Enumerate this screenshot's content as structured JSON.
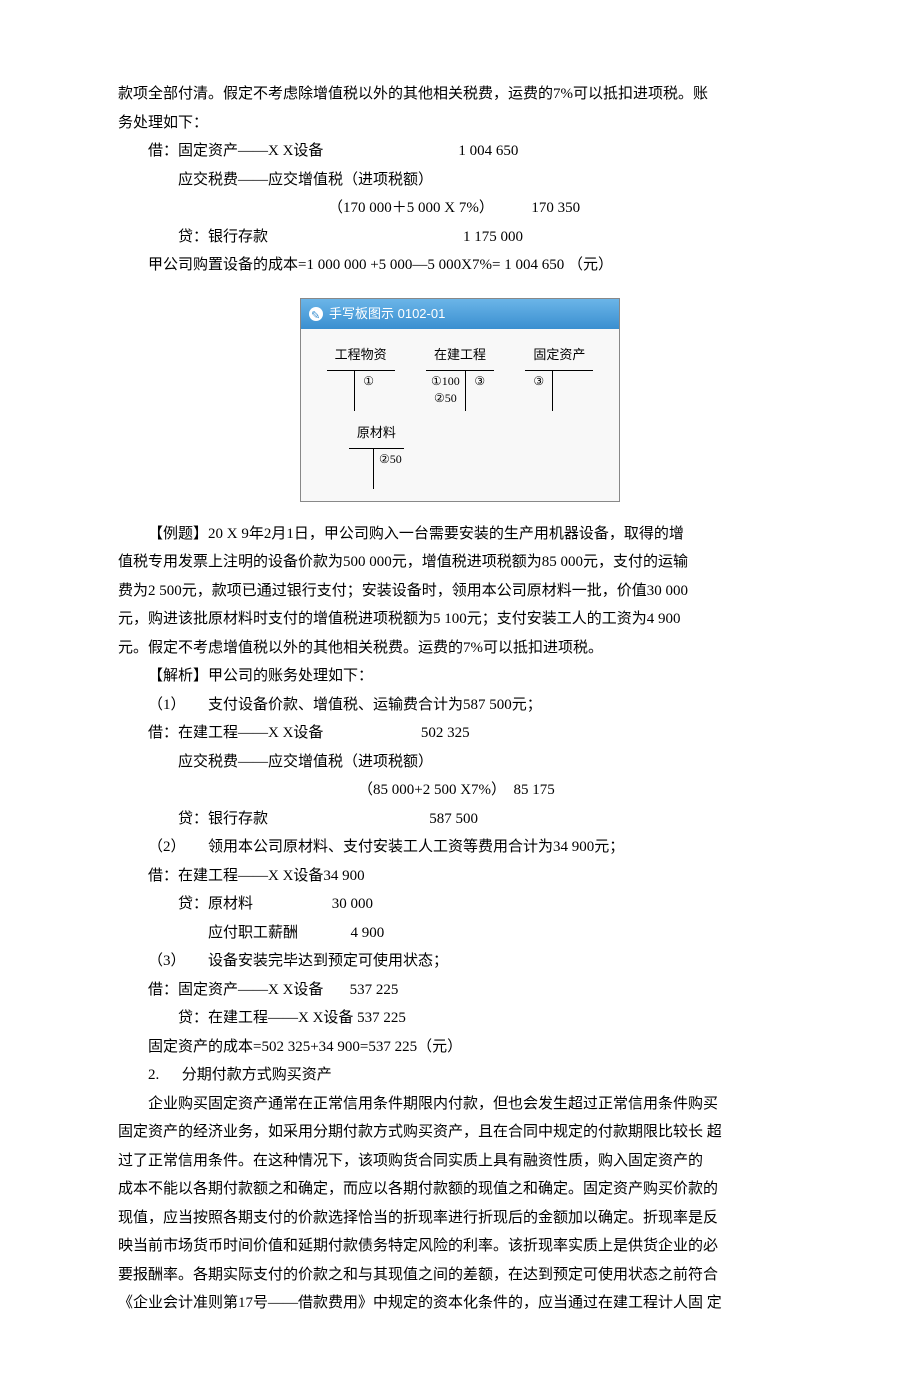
{
  "header": {
    "line1": "款项全部付清。假定不考虑除增值税以外的其他相关税费，运费的7%可以抵扣进项税。账",
    "line2": "务处理如下："
  },
  "entry1": {
    "l1": "借：固定资产——X X设备                                    1 004 650",
    "l2": "应交税费——应交增值税（进项税额）",
    "l3": "（170 000＋5 000 X 7%）          170 350",
    "l4": "贷：银行存款                                                    1 175 000",
    "l5": "甲公司购置设备的成本=1 000 000 +5 000—5 000X7%= 1 004 650 （元）"
  },
  "diagram": {
    "header": "手写板图示 0102-01",
    "accounts": {
      "a1_title": "工程物资",
      "a1_left": "①",
      "a2_title": "在建工程",
      "a2_left_1": "①100",
      "a2_left_2": "②50",
      "a2_right": "③",
      "a3_title": "固定资产",
      "a3_left": "③",
      "a4_title": "原材料",
      "a4_right": "②50"
    }
  },
  "example": {
    "p1": "【例题】20 X 9年2月1日，甲公司购入一台需要安装的生产用机器设备，取得的增",
    "p2": "值税专用发票上注明的设备价款为500 000元，增值税进项税额为85 000元，支付的运输",
    "p3": "费为2 500元，款项已通过银行支付；安装设备时，领用本公司原材料一批，价值30 000",
    "p4": "元，购进该批原材料时支付的增值税进项税额为5 100元；支付安装工人的工资为4 900",
    "p5": "元。假定不考虑增值税以外的其他相关税费。运费的7%可以抵扣进项税。"
  },
  "solution": {
    "head": "【解析】甲公司的账务处理如下：",
    "s1": "（1）      支付设备价款、增值税、运输费合计为587 500元；",
    "s1_l1": "借：在建工程——X X设备                          502 325",
    "s1_l2": "应交税费——应交增值税（进项税额）",
    "s1_l3": "（85 000+2 500 X7%）  85 175",
    "s1_l4": "贷：银行存款                                           587 500",
    "s2": "（2）      领用本公司原材料、支付安装工人工资等费用合计为34 900元；",
    "s2_l1": "借：在建工程——X X设备34 900",
    "s2_l2": "贷：原材料                     30 000",
    "s2_l3": "应付职工薪酬              4 900",
    "s3": "（3）      设备安装完毕达到预定可使用状态；",
    "s3_l1": "借：固定资产——X X设备       537 225",
    "s3_l2": "贷：在建工程——X X设备 537 225",
    "cost": "固定资产的成本=502 325+34 900=537 225（元）"
  },
  "section2": {
    "title": "2.      分期付款方式购买资产",
    "p1": "企业购买固定资产通常在正常信用条件期限内付款，但也会发生超过正常信用条件购买",
    "p2": "固定资产的经济业务，如采用分期付款方式购买资产，且在合同中规定的付款期限比较长 超",
    "p3": "过了正常信用条件。在这种情况下，该项购货合同实质上具有融资性质，购入固定资产的",
    "p4": "成本不能以各期付款额之和确定，而应以各期付款额的现值之和确定。固定资产购买价款的",
    "p5": "现值，应当按照各期支付的价款选择恰当的折现率进行折现后的金额加以确定。折现率是反",
    "p6": "映当前市场货币时间价值和延期付款债务特定风险的利率。该折现率实质上是供货企业的必",
    "p7": "要报酬率。各期实际支付的价款之和与其现值之间的差额，在达到预定可使用状态之前符合",
    "p8": "《企业会计准则第17号——借款费用》中规定的资本化条件的，应当通过在建工程计人固 定"
  }
}
